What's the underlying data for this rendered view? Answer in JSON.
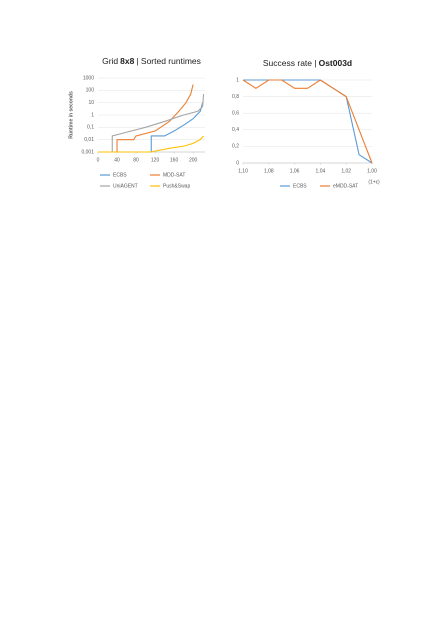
{
  "chart_data": [
    {
      "type": "line",
      "title": [
        "Grid",
        "8x8",
        "| Sorted runtimes"
      ],
      "y_label": "Runtime in seconds",
      "log_y": true,
      "grid": true,
      "xlim": [
        0,
        225
      ],
      "ylim": [
        0.001,
        1000
      ],
      "xticks": [
        0,
        40,
        80,
        120,
        160,
        200
      ],
      "yticks": [
        {
          "value": 0.001,
          "label": "0,001"
        },
        {
          "value": 0.01,
          "label": "0,01"
        },
        {
          "value": 0.1,
          "label": "0,1"
        },
        1,
        10,
        100,
        1000
      ],
      "series": [
        {
          "name": "ECBS",
          "color": "#5b9bd5",
          "x": [
            0,
            112,
            112,
            140,
            160,
            180,
            200,
            215,
            220
          ],
          "values": [
            0.001,
            0.001,
            0.02,
            0.02,
            0.05,
            0.15,
            0.5,
            2,
            10
          ]
        },
        {
          "name": "MDD-SAT",
          "color": "#ed7d31",
          "x": [
            0,
            40,
            40,
            75,
            80,
            120,
            150,
            170,
            185,
            195,
            200
          ],
          "values": [
            0.001,
            0.001,
            0.01,
            0.01,
            0.02,
            0.05,
            0.3,
            2,
            10,
            50,
            300
          ]
        },
        {
          "name": "UniAGENT",
          "color": "#a5a5a5",
          "x": [
            0,
            30,
            30,
            60,
            100,
            140,
            180,
            210,
            220,
            222
          ],
          "values": [
            0.001,
            0.001,
            0.02,
            0.04,
            0.1,
            0.3,
            1,
            2,
            5,
            50
          ]
        },
        {
          "name": "Push&Swap",
          "color": "#ffc000",
          "x": [
            0,
            110,
            150,
            180,
            200,
            215,
            222
          ],
          "values": [
            0.001,
            0.001,
            0.002,
            0.003,
            0.005,
            0.01,
            0.02
          ]
        }
      ]
    },
    {
      "type": "line",
      "title": [
        "Success rate |",
        "Ost003d"
      ],
      "x_label": "(1+ε)",
      "log_y": false,
      "grid": true,
      "xlim": [
        1.1,
        1.0
      ],
      "ylim": [
        0,
        1
      ],
      "xticks": [
        {
          "value": 1.1,
          "label": "1,10"
        },
        {
          "value": 1.08,
          "label": "1,08"
        },
        {
          "value": 1.06,
          "label": "1,06"
        },
        {
          "value": 1.04,
          "label": "1,04"
        },
        {
          "value": 1.02,
          "label": "1,02"
        },
        {
          "value": 1.0,
          "label": "1,00"
        }
      ],
      "yticks": [
        0,
        {
          "value": 0.2,
          "label": "0,2"
        },
        {
          "value": 0.4,
          "label": "0,4"
        },
        {
          "value": 0.6,
          "label": "0,6"
        },
        {
          "value": 0.8,
          "label": "0,8"
        },
        1
      ],
      "series": [
        {
          "name": "ECBS",
          "color": "#5b9bd5",
          "x": [
            1.1,
            1.09,
            1.08,
            1.07,
            1.06,
            1.05,
            1.04,
            1.03,
            1.02,
            1.01,
            1.0
          ],
          "values": [
            1,
            1,
            1,
            1,
            1,
            1,
            1,
            0.9,
            0.8,
            0.1,
            0
          ]
        },
        {
          "name": "eMDD-SAT",
          "color": "#ed7d31",
          "x": [
            1.1,
            1.09,
            1.08,
            1.07,
            1.06,
            1.05,
            1.04,
            1.03,
            1.02,
            1.01,
            1.0
          ],
          "values": [
            1,
            0.9,
            1,
            1,
            0.9,
            0.9,
            1,
            0.9,
            0.8,
            0.4,
            0
          ]
        }
      ]
    }
  ]
}
